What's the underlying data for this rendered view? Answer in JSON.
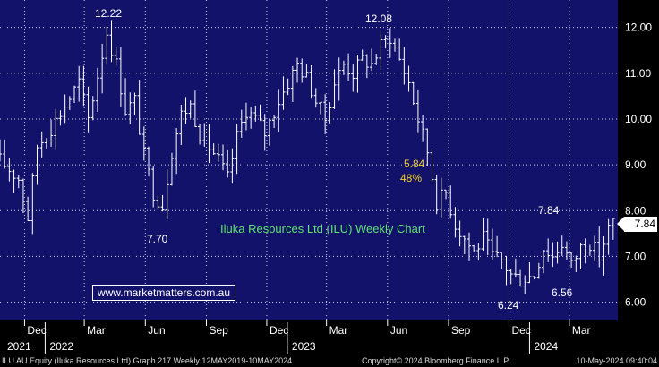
{
  "chart_data": {
    "type": "candlestick",
    "title": "Iluka Resources Ltd (ILU) Weekly Chart",
    "y_ticks": [
      6.0,
      7.0,
      8.0,
      9.0,
      10.0,
      11.0,
      12.0
    ],
    "y_tick_labels": [
      "6.00",
      "7.00",
      "8.00",
      "9.00",
      "10.00",
      "11.00",
      "12.00"
    ],
    "ylim": [
      5.6,
      12.6
    ],
    "x_range": [
      "2021-10-25",
      "2024-05-13"
    ],
    "month_ticks": [
      {
        "date": "2021-12-01",
        "label": "Dec"
      },
      {
        "date": "2022-03-01",
        "label": "Mar"
      },
      {
        "date": "2022-06-01",
        "label": "Jun"
      },
      {
        "date": "2022-09-01",
        "label": "Sep"
      },
      {
        "date": "2022-12-01",
        "label": "Dec"
      },
      {
        "date": "2023-03-01",
        "label": "Mar"
      },
      {
        "date": "2023-06-01",
        "label": "Jun"
      },
      {
        "date": "2023-09-01",
        "label": "Sep"
      },
      {
        "date": "2023-12-01",
        "label": "Dec"
      },
      {
        "date": "2024-03-01",
        "label": "Mar"
      }
    ],
    "year_ticks": [
      {
        "date": "2021-01-01",
        "label": "2021"
      },
      {
        "date": "2022-01-01",
        "label": "2022"
      },
      {
        "date": "2023-01-01",
        "label": "2023"
      },
      {
        "date": "2024-01-01",
        "label": "2024"
      }
    ],
    "close_anchors": [
      {
        "date": "2021-10-25",
        "value": 9.1
      },
      {
        "date": "2021-11-22",
        "value": 8.7
      },
      {
        "date": "2021-12-06",
        "value": 7.85
      },
      {
        "date": "2021-12-20",
        "value": 9.4
      },
      {
        "date": "2022-01-10",
        "value": 9.8
      },
      {
        "date": "2022-01-31",
        "value": 10.3
      },
      {
        "date": "2022-02-21",
        "value": 10.8
      },
      {
        "date": "2022-03-07",
        "value": 10.0
      },
      {
        "date": "2022-04-04",
        "value": 11.9
      },
      {
        "date": "2022-04-18",
        "value": 11.2
      },
      {
        "date": "2022-05-02",
        "value": 10.2
      },
      {
        "date": "2022-05-16",
        "value": 10.4
      },
      {
        "date": "2022-05-30",
        "value": 9.2
      },
      {
        "date": "2022-06-13",
        "value": 8.4
      },
      {
        "date": "2022-06-27",
        "value": 8.1
      },
      {
        "date": "2022-07-11",
        "value": 9.3
      },
      {
        "date": "2022-07-25",
        "value": 10.1
      },
      {
        "date": "2022-08-08",
        "value": 10.3
      },
      {
        "date": "2022-08-22",
        "value": 9.7
      },
      {
        "date": "2022-09-05",
        "value": 9.4
      },
      {
        "date": "2022-09-19",
        "value": 9.1
      },
      {
        "date": "2022-10-03",
        "value": 8.7
      },
      {
        "date": "2022-10-17",
        "value": 9.6
      },
      {
        "date": "2022-10-31",
        "value": 10.2
      },
      {
        "date": "2022-11-14",
        "value": 10.0
      },
      {
        "date": "2022-11-28",
        "value": 9.7
      },
      {
        "date": "2022-12-19",
        "value": 10.4
      },
      {
        "date": "2023-01-16",
        "value": 11.2
      },
      {
        "date": "2023-01-30",
        "value": 10.9
      },
      {
        "date": "2023-02-13",
        "value": 10.4
      },
      {
        "date": "2023-02-27",
        "value": 10.0
      },
      {
        "date": "2023-03-13",
        "value": 10.8
      },
      {
        "date": "2023-03-27",
        "value": 11.2
      },
      {
        "date": "2023-04-10",
        "value": 11.0
      },
      {
        "date": "2023-04-24",
        "value": 11.3
      },
      {
        "date": "2023-05-08",
        "value": 11.2
      },
      {
        "date": "2023-05-22",
        "value": 11.6
      },
      {
        "date": "2023-06-05",
        "value": 11.8
      },
      {
        "date": "2023-06-19",
        "value": 11.3
      },
      {
        "date": "2023-07-03",
        "value": 10.8
      },
      {
        "date": "2023-07-17",
        "value": 10.0
      },
      {
        "date": "2023-07-31",
        "value": 9.3
      },
      {
        "date": "2023-08-14",
        "value": 8.2
      },
      {
        "date": "2023-08-28",
        "value": 8.4
      },
      {
        "date": "2023-09-11",
        "value": 7.7
      },
      {
        "date": "2023-09-25",
        "value": 7.4
      },
      {
        "date": "2023-10-09",
        "value": 7.1
      },
      {
        "date": "2023-10-23",
        "value": 7.4
      },
      {
        "date": "2023-11-06",
        "value": 7.0
      },
      {
        "date": "2023-11-20",
        "value": 6.9
      },
      {
        "date": "2023-12-04",
        "value": 6.6
      },
      {
        "date": "2023-12-18",
        "value": 6.5
      },
      {
        "date": "2024-01-08",
        "value": 6.6
      },
      {
        "date": "2024-01-22",
        "value": 7.2
      },
      {
        "date": "2024-02-05",
        "value": 7.0
      },
      {
        "date": "2024-02-19",
        "value": 7.3
      },
      {
        "date": "2024-03-04",
        "value": 6.8
      },
      {
        "date": "2024-03-18",
        "value": 7.2
      },
      {
        "date": "2024-04-01",
        "value": 7.3
      },
      {
        "date": "2024-04-15",
        "value": 7.0
      },
      {
        "date": "2024-04-29",
        "value": 7.6
      },
      {
        "date": "2024-05-10",
        "value": 7.84
      }
    ],
    "annotations": {
      "peak1": "12.22",
      "peak2": "12.08",
      "low1": "7.70",
      "low2": "6.24",
      "low3": "6.56",
      "recent_high": "7.84",
      "drop_value": "5.84",
      "drop_pct": "48%"
    },
    "last_price": "7.84",
    "grid": true
  },
  "watermark": "www.marketmatters.com.au",
  "footer": {
    "left": "ILU AU Equity (Iluka Resources Ltd) Graph 217  Weekly 12MAY2019-10MAY2024",
    "mid": "Copyright© 2024 Bloomberg Finance L.P.",
    "right": "10-May-2024 09:40:04"
  },
  "colors": {
    "background": "#12126a",
    "grid": "#ffffff",
    "bars": "#ffffff",
    "title": "#5fe26f",
    "highlight": "#f3d22a"
  }
}
